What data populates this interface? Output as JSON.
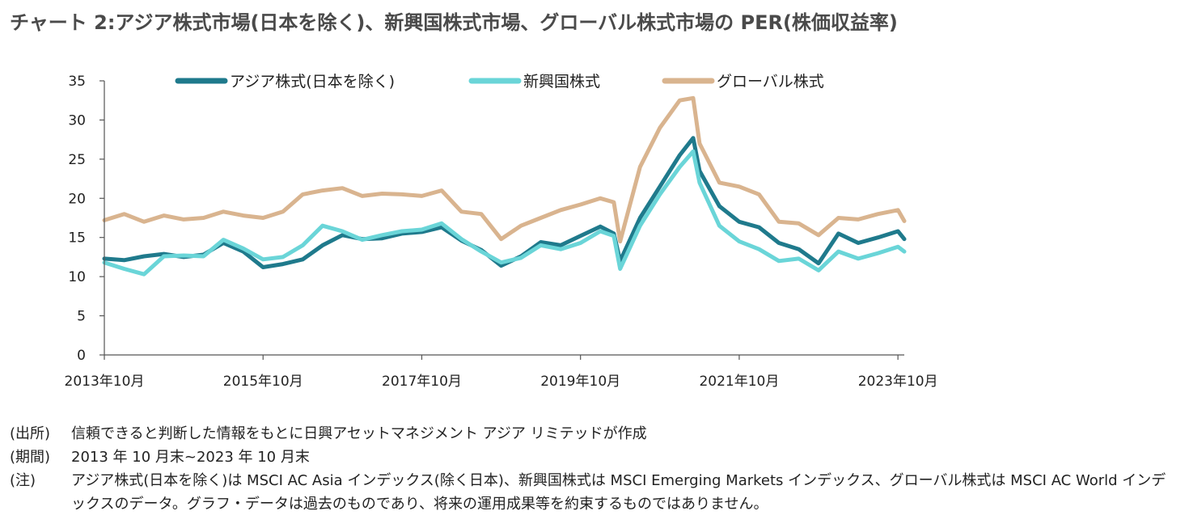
{
  "title": "チャート 2:アジア株式市場(日本を除く)、新興国株式市場、グローバル株式市場の PER(株価収益率)",
  "notes": [
    {
      "label": "(出所)",
      "text": "信頼できると判断した情報をもとに日興アセットマネジメント アジア リミテッドが作成"
    },
    {
      "label": "(期間)",
      "text": "2013 年 10 月末~2023 年 10 月末"
    },
    {
      "label": "(注)",
      "text": "アジア株式(日本を除く)は MSCI AC Asia インデックス(除く日本)、新興国株式は MSCI Emerging Markets インデックス、グローバル株式は MSCI AC World インデックスのデータ。グラフ・データは過去のものであり、将来の運用成果等を約束するものではありません。"
    }
  ],
  "chart_data": {
    "type": "line",
    "title": "",
    "xlabel": "",
    "ylabel": "",
    "ylim": [
      0,
      35
    ],
    "yticks": [
      0,
      5,
      10,
      15,
      20,
      25,
      30,
      35
    ],
    "xlim": [
      2013.75,
      2023.83
    ],
    "xticks": [
      {
        "value": 2013.75,
        "label": "2013年10月"
      },
      {
        "value": 2015.75,
        "label": "2015年10月"
      },
      {
        "value": 2017.75,
        "label": "2017年10月"
      },
      {
        "value": 2019.75,
        "label": "2019年10月"
      },
      {
        "value": 2021.75,
        "label": "2021年10月"
      },
      {
        "value": 2023.75,
        "label": "2023年10月"
      }
    ],
    "grid": false,
    "legend_position": "top",
    "x": [
      2013.75,
      2014.0,
      2014.25,
      2014.5,
      2014.75,
      2015.0,
      2015.25,
      2015.5,
      2015.75,
      2016.0,
      2016.25,
      2016.5,
      2016.75,
      2017.0,
      2017.25,
      2017.5,
      2017.75,
      2018.0,
      2018.25,
      2018.5,
      2018.75,
      2019.0,
      2019.25,
      2019.5,
      2019.75,
      2020.0,
      2020.17,
      2020.25,
      2020.5,
      2020.75,
      2021.0,
      2021.17,
      2021.25,
      2021.5,
      2021.75,
      2022.0,
      2022.25,
      2022.5,
      2022.75,
      2023.0,
      2023.25,
      2023.5,
      2023.75,
      2023.83
    ],
    "series": [
      {
        "name": "アジア株式(日本を除く)",
        "color": "#1f7a8c",
        "values": [
          12.3,
          12.1,
          12.6,
          12.9,
          12.5,
          12.8,
          14.3,
          13.2,
          11.2,
          11.6,
          12.2,
          14.0,
          15.3,
          14.8,
          14.9,
          15.5,
          15.7,
          16.3,
          14.6,
          13.4,
          11.4,
          12.6,
          14.4,
          14.0,
          15.2,
          16.4,
          15.5,
          12.0,
          17.5,
          21.5,
          25.5,
          27.7,
          23.5,
          19.0,
          17.0,
          16.3,
          14.3,
          13.5,
          11.7,
          15.5,
          14.3,
          15.0,
          15.8,
          14.8
        ]
      },
      {
        "name": "新興国株式",
        "color": "#6ad5d8",
        "values": [
          11.8,
          11.0,
          10.3,
          12.6,
          12.7,
          12.6,
          14.7,
          13.6,
          12.2,
          12.5,
          14.0,
          16.5,
          15.8,
          14.7,
          15.3,
          15.8,
          16.0,
          16.8,
          14.8,
          13.2,
          11.8,
          12.4,
          14.0,
          13.5,
          14.3,
          15.8,
          15.2,
          11.0,
          16.5,
          20.5,
          24.0,
          26.0,
          22.0,
          16.5,
          14.5,
          13.5,
          12.0,
          12.3,
          10.8,
          13.2,
          12.3,
          13.0,
          13.8,
          13.2
        ]
      },
      {
        "name": "グローバル株式",
        "color": "#d9b48f",
        "values": [
          17.2,
          18.0,
          17.0,
          17.8,
          17.3,
          17.5,
          18.3,
          17.8,
          17.5,
          18.3,
          20.5,
          21.0,
          21.3,
          20.3,
          20.6,
          20.5,
          20.3,
          21.0,
          18.3,
          18.0,
          14.8,
          16.5,
          17.5,
          18.5,
          19.2,
          20.0,
          19.5,
          14.5,
          24.0,
          29.0,
          32.5,
          32.8,
          27.0,
          22.0,
          21.5,
          20.5,
          17.0,
          16.8,
          15.3,
          17.5,
          17.3,
          18.0,
          18.5,
          17.1
        ]
      }
    ]
  }
}
